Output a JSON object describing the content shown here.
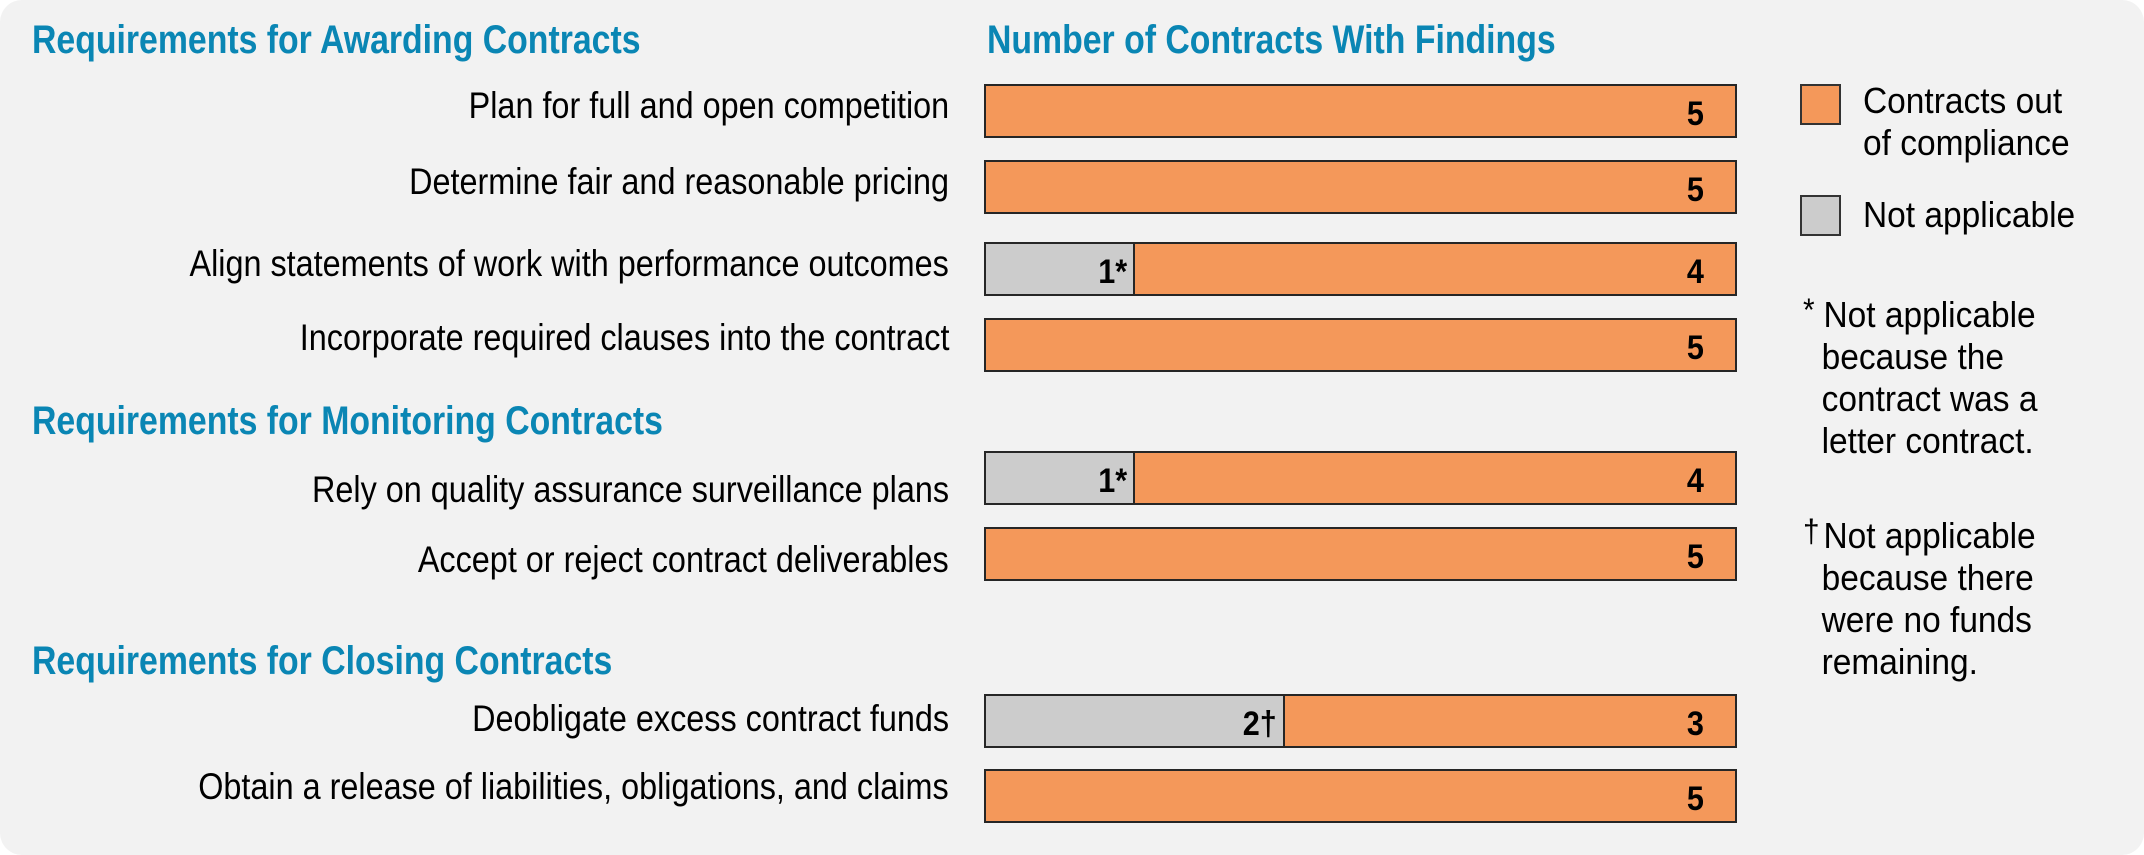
{
  "colors": {
    "heading": "#0a86b4",
    "out_of_compliance": "#f4985a",
    "not_applicable": "#cccccc",
    "panel_bg": "#f2f2f2"
  },
  "sections": {
    "awarding": "Requirements for Awarding Contracts",
    "monitoring": "Requirements for Monitoring Contracts",
    "closing": "Requirements for Closing Contracts"
  },
  "chart_data": {
    "type": "bar",
    "orientation": "horizontal",
    "stacked": true,
    "title": "Number of Contracts With Findings",
    "xlim": [
      0,
      5
    ],
    "categories": [
      "Plan for full and open competition",
      "Determine fair and reasonable pricing",
      "Align statements of work with performance outcomes",
      "Incorporate required clauses into the contract",
      "Rely on quality assurance surveillance plans",
      "Accept or reject contract deliverables",
      "Deobligate excess contract funds",
      "Obtain a release of liabilities, obligations, and claims"
    ],
    "category_groups": [
      "Requirements for Awarding Contracts",
      "Requirements for Awarding Contracts",
      "Requirements for Awarding Contracts",
      "Requirements for Awarding Contracts",
      "Requirements for Monitoring Contracts",
      "Requirements for Monitoring Contracts",
      "Requirements for Closing Contracts",
      "Requirements for Closing Contracts"
    ],
    "series": [
      {
        "name": "Not applicable",
        "color": "#cccccc",
        "values": [
          0,
          0,
          1,
          0,
          1,
          0,
          2,
          0
        ],
        "labels": [
          "",
          "",
          "1*",
          "",
          "1*",
          "",
          "2†",
          ""
        ]
      },
      {
        "name": "Contracts out of compliance",
        "color": "#f4985a",
        "values": [
          5,
          5,
          4,
          5,
          4,
          5,
          3,
          5
        ],
        "labels": [
          "5",
          "5",
          "4",
          "5",
          "4",
          "5",
          "3",
          "5"
        ]
      }
    ],
    "legend": {
      "position": "right",
      "entries": [
        {
          "line1": "Contracts out",
          "line2": "of compliance",
          "color": "#f4985a"
        },
        {
          "line1": "Not applicable",
          "color": "#cccccc"
        }
      ]
    },
    "footnotes": [
      {
        "mark": "*",
        "lines": [
          "Not applicable",
          "because the",
          "contract was a",
          "letter contract."
        ]
      },
      {
        "mark": "†",
        "lines": [
          "Not applicable",
          "because there",
          "were no funds",
          "remaining."
        ]
      }
    ]
  }
}
